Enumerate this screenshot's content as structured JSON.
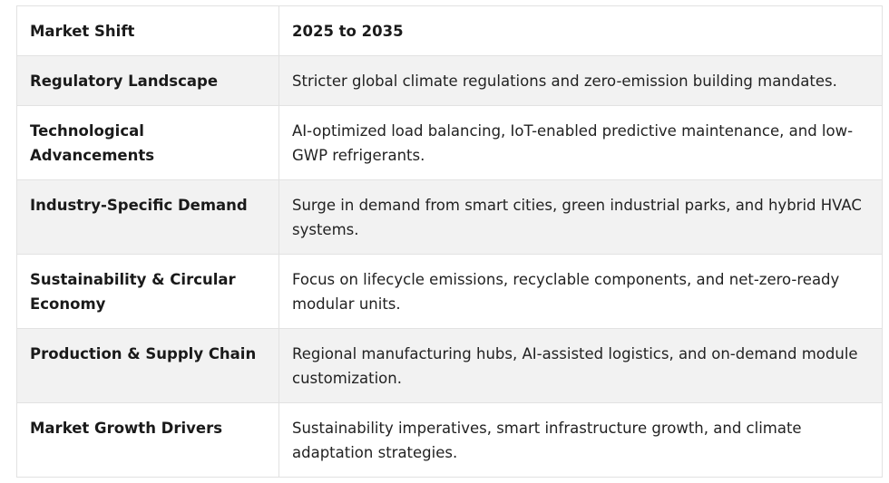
{
  "table": {
    "header": {
      "col1": "Market Shift",
      "col2": "2025 to 2035"
    },
    "rows": [
      {
        "label": "Regulatory Landscape",
        "value": "Stricter global climate regulations and zero-emission building mandates."
      },
      {
        "label": "Technological Advancements",
        "value": "AI-optimized load balancing, IoT-enabled predictive maintenance, and low-GWP refrigerants."
      },
      {
        "label": "Industry-Specific Demand",
        "value": "Surge in demand from smart cities, green industrial parks, and hybrid HVAC systems."
      },
      {
        "label": "Sustainability & Circular Economy",
        "value": "Focus on lifecycle emissions, recyclable components, and net-zero-ready modular units."
      },
      {
        "label": "Production & Supply Chain",
        "value": "Regional manufacturing hubs, AI-assisted logistics, and on-demand module customization."
      },
      {
        "label": "Market Growth Drivers",
        "value": "Sustainability imperatives, smart infrastructure growth, and climate adaptation strategies."
      }
    ]
  }
}
